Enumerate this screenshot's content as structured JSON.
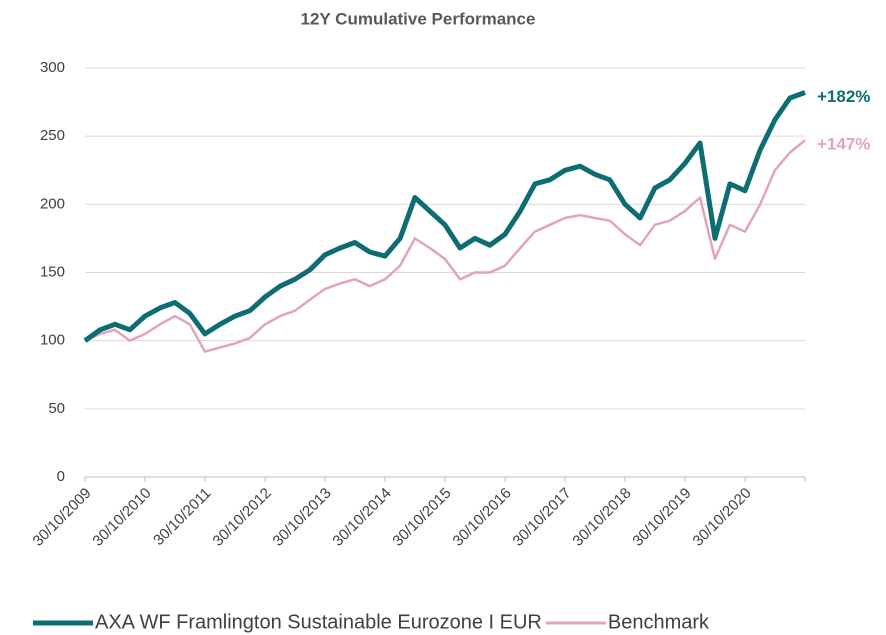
{
  "chart_data": {
    "type": "line",
    "title": "12Y Cumulative Performance",
    "x": [
      "30/10/2009",
      "30/01/2010",
      "30/04/2010",
      "30/07/2010",
      "30/10/2010",
      "30/01/2011",
      "30/04/2011",
      "30/07/2011",
      "30/10/2011",
      "30/01/2012",
      "30/04/2012",
      "30/07/2012",
      "30/10/2012",
      "30/01/2013",
      "30/04/2013",
      "30/07/2013",
      "30/10/2013",
      "30/01/2014",
      "30/04/2014",
      "30/07/2014",
      "30/10/2014",
      "30/01/2015",
      "30/04/2015",
      "30/07/2015",
      "30/10/2015",
      "30/01/2016",
      "30/04/2016",
      "30/07/2016",
      "30/10/2016",
      "30/01/2017",
      "30/04/2017",
      "30/07/2017",
      "30/10/2017",
      "30/01/2018",
      "30/04/2018",
      "30/07/2018",
      "30/10/2018",
      "30/01/2019",
      "30/04/2019",
      "30/07/2019",
      "30/10/2019",
      "30/01/2020",
      "30/04/2020",
      "30/07/2020",
      "30/10/2020",
      "30/01/2021",
      "30/04/2021",
      "30/07/2021",
      "30/10/2021"
    ],
    "series": [
      {
        "name": "AXA WF Framlington Sustainable Eurozone I EUR",
        "color": "#0e6d73",
        "end_label": "+182%",
        "values": [
          100,
          108,
          112,
          108,
          118,
          124,
          128,
          120,
          105,
          112,
          118,
          122,
          132,
          140,
          145,
          152,
          163,
          168,
          172,
          165,
          162,
          175,
          205,
          195,
          185,
          168,
          175,
          170,
          178,
          195,
          215,
          218,
          225,
          228,
          222,
          218,
          200,
          190,
          212,
          218,
          230,
          245,
          175,
          215,
          210,
          240,
          262,
          278,
          282
        ]
      },
      {
        "name": "Benchmark",
        "color": "#e3a3b8",
        "end_label": "+147%",
        "values": [
          100,
          105,
          108,
          100,
          105,
          112,
          118,
          112,
          92,
          95,
          98,
          102,
          112,
          118,
          122,
          130,
          138,
          142,
          145,
          140,
          145,
          155,
          175,
          168,
          160,
          145,
          150,
          150,
          155,
          168,
          180,
          185,
          190,
          192,
          190,
          188,
          178,
          170,
          185,
          188,
          195,
          205,
          160,
          185,
          180,
          200,
          225,
          238,
          247
        ]
      }
    ],
    "xlim": [
      "30/10/2009",
      "30/10/2021"
    ],
    "xticks": [
      "30/10/2009",
      "30/10/2010",
      "30/10/2011",
      "30/10/2012",
      "30/10/2013",
      "30/10/2014",
      "30/10/2015",
      "30/10/2016",
      "30/10/2017",
      "30/10/2018",
      "30/10/2019",
      "30/10/2020"
    ],
    "ylim": [
      0,
      300
    ],
    "yticks": [
      0,
      50,
      100,
      150,
      200,
      250,
      300
    ],
    "grid": true,
    "legend": "bottom"
  }
}
